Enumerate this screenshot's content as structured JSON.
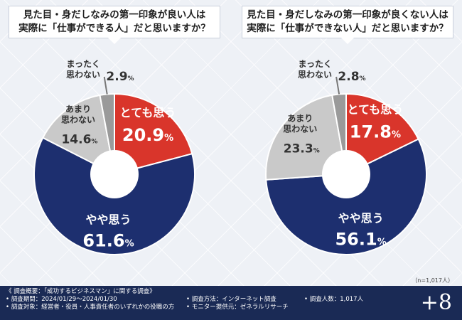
{
  "questions": {
    "left": [
      "見た目・身だしなみの第一印象が良い人は",
      "実際に「仕事ができる人」だと思いますか？"
    ],
    "right": [
      "見た目・身だしなみの第一印象が良くない人は",
      "実際に「仕事ができない人」だと思いますか？"
    ]
  },
  "colors": {
    "totemo": "#d9352b",
    "yaya": "#1d2f6f",
    "amari": "#c9c9c9",
    "mattaku": "#9a9a9a",
    "footer": "#1a2a55"
  },
  "chart_data": [
    {
      "type": "pie",
      "title": "見た目・身だしなみの第一印象が良い人は実際に「仕事ができる人」だと思いますか？",
      "unit": "%",
      "slices": [
        {
          "label": "とても思う",
          "value": 20.9,
          "value_text": "20.9%",
          "color": "#d9352b"
        },
        {
          "label": "やや思う",
          "value": 61.6,
          "value_text": "61.6%",
          "color": "#1d2f6f"
        },
        {
          "label": "あまり思わない",
          "value": 14.6,
          "value_text": "14.6%",
          "color": "#c9c9c9"
        },
        {
          "label": "まったく思わない",
          "value": 2.9,
          "value_text": "2.9%",
          "color": "#9a9a9a"
        }
      ]
    },
    {
      "type": "pie",
      "title": "見た目・身だしなみの第一印象が良くない人は実際に「仕事ができない人」だと思いますか？",
      "unit": "%",
      "slices": [
        {
          "label": "とても思う",
          "value": 17.8,
          "value_text": "17.8%",
          "color": "#d9352b"
        },
        {
          "label": "やや思う",
          "value": 56.1,
          "value_text": "56.1%",
          "color": "#1d2f6f"
        },
        {
          "label": "あまり思わない",
          "value": 23.3,
          "value_text": "23.3%",
          "color": "#c9c9c9"
        },
        {
          "label": "まったく思わない",
          "value": 2.8,
          "value_text": "2.8%",
          "color": "#9a9a9a"
        }
      ]
    }
  ],
  "label_lines": {
    "totemo": [
      "とても思う"
    ],
    "yaya": [
      "やや思う"
    ],
    "amari": [
      "あまり",
      "思わない"
    ],
    "mattaku": [
      "まったく",
      "思わない"
    ]
  },
  "n_note": "（n=1,017人）",
  "footer": {
    "summary": "《 調査概要：「成功するビジネスマン」に関する調査》",
    "period": "• 調査期間：2024/01/29～2024/01/30",
    "target": "• 調査対象：経営者・役員・人事責任者のいずれかの役職の方",
    "method": "• 調査方法：インターネット調査",
    "provider": "• モニター提供元：ゼネラルリサーチ",
    "count": "• 調査人数：1,017人",
    "logo": "+8"
  }
}
